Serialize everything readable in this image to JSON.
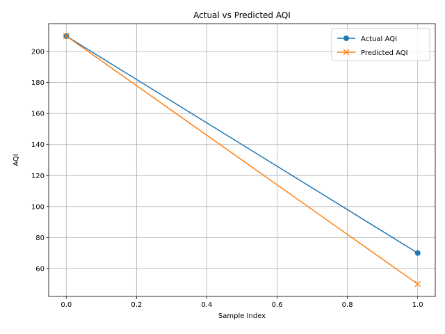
{
  "chart_data": {
    "type": "line",
    "title": "Actual vs Predicted AQI",
    "xlabel": "Sample Index",
    "ylabel": "AQI",
    "x": [
      0,
      1
    ],
    "xlim": [
      -0.05,
      1.05
    ],
    "ylim": [
      42,
      218
    ],
    "xticks": [
      0.0,
      0.2,
      0.4,
      0.6,
      0.8,
      1.0
    ],
    "xtick_labels": [
      "0.0",
      "0.2",
      "0.4",
      "0.6",
      "0.8",
      "1.0"
    ],
    "yticks": [
      60,
      80,
      100,
      120,
      140,
      160,
      180,
      200
    ],
    "ytick_labels": [
      "60",
      "80",
      "100",
      "120",
      "140",
      "160",
      "180",
      "200"
    ],
    "grid": true,
    "legend_position": "top-right",
    "series": [
      {
        "name": "Actual AQI",
        "values": [
          210,
          70
        ],
        "color": "#1f77b4",
        "marker": "circle"
      },
      {
        "name": "Predicted AQI",
        "values": [
          210,
          50
        ],
        "color": "#ff7f0e",
        "marker": "x"
      }
    ]
  }
}
